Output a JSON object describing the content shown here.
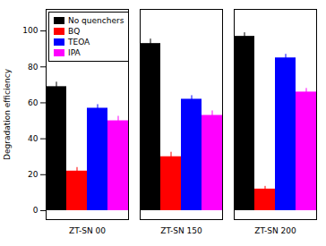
{
  "chart_data": {
    "type": "bar",
    "categories": [
      "ZT-SN 00",
      "ZT-SN 150",
      "ZT-SN 200"
    ],
    "series": [
      {
        "name": "No quenchers",
        "color": "#000000",
        "values": [
          69,
          93,
          97
        ],
        "errors": [
          2.5,
          2.5,
          2.0
        ]
      },
      {
        "name": "BQ",
        "color": "#ff0000",
        "values": [
          22,
          30,
          12
        ],
        "errors": [
          2.0,
          2.5,
          1.5
        ]
      },
      {
        "name": "TEOA",
        "color": "#0000ff",
        "values": [
          57,
          62,
          85
        ],
        "errors": [
          2.0,
          2.0,
          2.0
        ]
      },
      {
        "name": "IPA",
        "color": "#ff00ff",
        "values": [
          50,
          53,
          66
        ],
        "errors": [
          2.5,
          2.5,
          2.0
        ]
      }
    ],
    "ylabel": "Degradation efficiency",
    "ylim": [
      -5,
      112
    ],
    "yticks": [
      0,
      20,
      40,
      60,
      80,
      100
    ],
    "grid": false,
    "legend": "upper left"
  }
}
